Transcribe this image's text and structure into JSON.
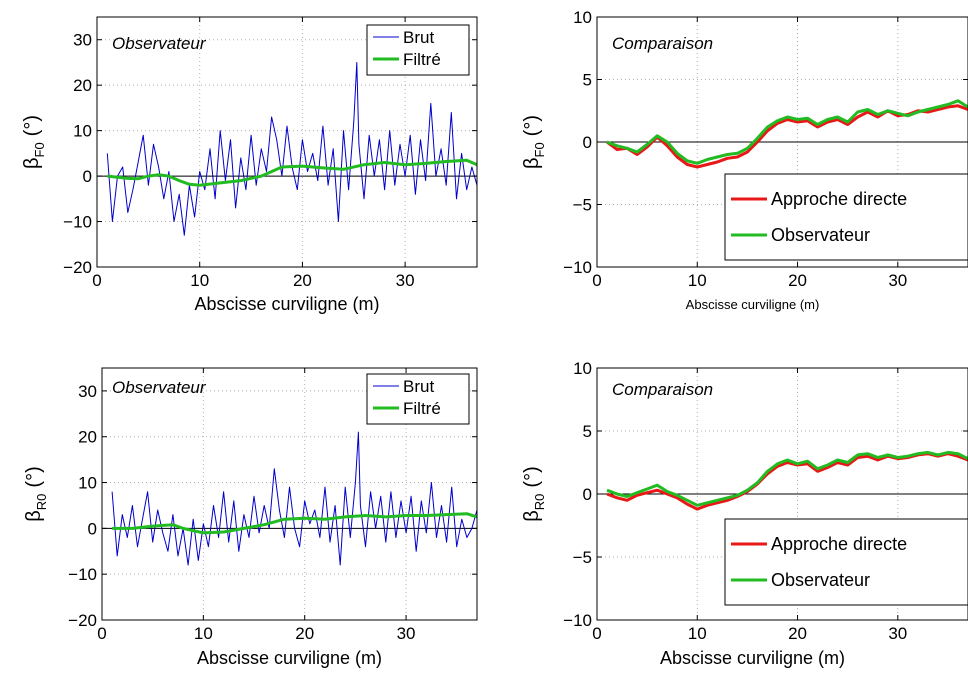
{
  "chart_data": [
    {
      "id": "top-left",
      "type": "line",
      "annotation": "Observateur",
      "xlabel": "Abscisse curviligne (m)",
      "ylabel": "β",
      "ylabel_sub": "F0",
      "ylabel_unit": "(°)",
      "xlim": [
        0,
        37
      ],
      "ylim": [
        -20,
        35
      ],
      "xticks": [
        0,
        10,
        20,
        30
      ],
      "yticks": [
        -20,
        -10,
        0,
        10,
        20,
        30
      ],
      "grid": true,
      "legend": "top-right",
      "series": [
        {
          "name": "Brut",
          "color": "#0000cc",
          "x": [
            1,
            1.5,
            2,
            2.5,
            3,
            3.5,
            4,
            4.5,
            5,
            5.5,
            6,
            6.5,
            7,
            7.5,
            8,
            8.5,
            9,
            9.5,
            10,
            10.5,
            11,
            11.5,
            12,
            12.5,
            13,
            13.5,
            14,
            14.5,
            15,
            15.5,
            16,
            16.5,
            17,
            17.5,
            18,
            18.5,
            19,
            19.5,
            20,
            20.5,
            21,
            21.5,
            22,
            22.5,
            23,
            23.5,
            24,
            24.5,
            25,
            25.3,
            25.5,
            26,
            26.5,
            27,
            27.5,
            28,
            28.5,
            29,
            29.5,
            30,
            30.5,
            31,
            31.5,
            32,
            32.5,
            33,
            33.5,
            34,
            34.5,
            35,
            35.5,
            36,
            36.5,
            37
          ],
          "y": [
            5,
            -10,
            0,
            2,
            -8,
            -3,
            3,
            9,
            -2,
            7,
            2,
            -5,
            1,
            -10,
            -4,
            -13,
            -2,
            -9,
            1,
            -3,
            6,
            -5,
            10,
            -1,
            8,
            -7,
            4,
            -3,
            9,
            -2,
            6,
            1,
            13,
            8,
            0,
            11,
            2,
            -3,
            8,
            1,
            5,
            -1,
            11,
            -2,
            6,
            -10,
            10,
            -3,
            12,
            25,
            7,
            -5,
            9,
            0,
            8,
            -3,
            10,
            -2,
            7,
            0,
            9,
            -4,
            8,
            -1,
            16,
            0,
            6,
            -2,
            14,
            -5,
            5,
            -3,
            2,
            -2
          ]
        },
        {
          "name": "Filtré",
          "color": "#22bb22",
          "x": [
            1,
            3,
            4,
            5,
            6,
            7,
            8,
            9,
            10,
            12,
            14,
            16,
            18,
            20,
            22,
            24,
            26,
            28,
            30,
            32,
            34,
            36,
            37
          ],
          "y": [
            0,
            -0.5,
            -0.6,
            0,
            0.3,
            0,
            -1,
            -1.8,
            -2,
            -1.5,
            -1,
            0,
            2,
            2.2,
            1.8,
            1.5,
            2.5,
            3,
            2.5,
            2.8,
            3.2,
            3.5,
            2.5
          ]
        }
      ]
    },
    {
      "id": "top-right",
      "type": "line",
      "annotation": "Comparaison",
      "xlabel": "Abscisse curviligne (m)",
      "ylabel": "β",
      "ylabel_sub": "F0",
      "ylabel_unit": "(°)",
      "xlim": [
        0,
        37
      ],
      "ylim": [
        -10,
        10
      ],
      "xticks": [
        0,
        10,
        20,
        30
      ],
      "yticks": [
        -10,
        -5,
        0,
        5,
        10
      ],
      "grid": true,
      "legend": "bottom-right",
      "series": [
        {
          "name": "Approche directe",
          "color": "#e81818",
          "x": [
            1,
            2,
            3,
            4,
            5,
            6,
            7,
            8,
            9,
            10,
            11,
            12,
            13,
            14,
            15,
            16,
            17,
            18,
            19,
            20,
            21,
            22,
            23,
            24,
            25,
            26,
            27,
            28,
            29,
            30,
            31,
            32,
            33,
            34,
            35,
            36,
            37
          ],
          "y": [
            0,
            -0.6,
            -0.5,
            -1,
            -0.4,
            0.4,
            -0.3,
            -1.2,
            -1.8,
            -2,
            -1.8,
            -1.6,
            -1.3,
            -1.2,
            -0.8,
            0,
            0.9,
            1.5,
            1.8,
            1.6,
            1.7,
            1.2,
            1.6,
            1.8,
            1.4,
            2.0,
            2.4,
            2.0,
            2.5,
            2.1,
            2.2,
            2.5,
            2.4,
            2.6,
            2.8,
            2.9,
            2.6
          ]
        },
        {
          "name": "Observateur",
          "color": "#22bb22",
          "x": [
            1,
            2,
            3,
            4,
            5,
            6,
            7,
            8,
            9,
            10,
            11,
            12,
            13,
            14,
            15,
            16,
            17,
            18,
            19,
            20,
            21,
            22,
            23,
            24,
            25,
            26,
            27,
            28,
            29,
            30,
            31,
            32,
            33,
            34,
            35,
            36,
            37
          ],
          "y": [
            0,
            -0.3,
            -0.5,
            -0.8,
            -0.2,
            0.5,
            0,
            -0.9,
            -1.5,
            -1.7,
            -1.4,
            -1.2,
            -1.0,
            -0.9,
            -0.5,
            0.3,
            1.2,
            1.7,
            2.0,
            1.8,
            1.9,
            1.4,
            1.8,
            2.0,
            1.6,
            2.4,
            2.6,
            2.2,
            2.5,
            2.3,
            2.1,
            2.4,
            2.6,
            2.8,
            3.0,
            3.3,
            2.8
          ]
        }
      ]
    },
    {
      "id": "bottom-left",
      "type": "line",
      "annotation": "Observateur",
      "xlabel": "Abscisse curviligne (m)",
      "ylabel": "β",
      "ylabel_sub": "R0",
      "ylabel_unit": "(°)",
      "xlim": [
        0,
        37
      ],
      "ylim": [
        -20,
        35
      ],
      "xticks": [
        0,
        10,
        20,
        30
      ],
      "yticks": [
        -20,
        -10,
        0,
        10,
        20,
        30
      ],
      "grid": true,
      "legend": "top-right",
      "series": [
        {
          "name": "Brut",
          "color": "#0000cc",
          "x": [
            1,
            1.5,
            2,
            2.5,
            3,
            3.5,
            4,
            4.5,
            5,
            5.5,
            6,
            6.5,
            7,
            7.5,
            8,
            8.5,
            9,
            9.5,
            10,
            10.5,
            11,
            11.5,
            12,
            12.5,
            13,
            13.5,
            14,
            14.5,
            15,
            15.5,
            16,
            16.5,
            17,
            17.5,
            18,
            18.5,
            19,
            19.5,
            20,
            20.5,
            21,
            21.5,
            22,
            22.5,
            23,
            23.5,
            24,
            24.5,
            25,
            25.3,
            25.5,
            26,
            26.5,
            27,
            27.5,
            28,
            28.5,
            29,
            29.5,
            30,
            30.5,
            31,
            31.5,
            32,
            32.5,
            33,
            33.5,
            34,
            34.5,
            35,
            35.5,
            36,
            36.5,
            37
          ],
          "y": [
            8,
            -6,
            3,
            -2,
            5,
            -4,
            2,
            8,
            -3,
            4,
            -1,
            -5,
            3,
            -6,
            0,
            -8,
            2,
            -7,
            1,
            -4,
            5,
            -2,
            8,
            -3,
            6,
            -5,
            3,
            -2,
            7,
            -1,
            5,
            0,
            13,
            4,
            -2,
            9,
            0,
            -4,
            6,
            1,
            4,
            -2,
            9,
            -3,
            5,
            -8,
            9,
            -2,
            10,
            21,
            5,
            -4,
            8,
            0,
            7,
            -3,
            8,
            -2,
            6,
            -1,
            7,
            -5,
            6,
            -1,
            10,
            -2,
            5,
            -3,
            9,
            -4,
            2,
            -2,
            0,
            4
          ]
        },
        {
          "name": "Filtré",
          "color": "#22bb22",
          "x": [
            1,
            3,
            5,
            7,
            8,
            9,
            10,
            12,
            14,
            16,
            18,
            20,
            22,
            24,
            26,
            28,
            30,
            32,
            34,
            36,
            37
          ],
          "y": [
            0,
            0,
            0.5,
            0.8,
            0,
            -0.5,
            -1,
            -0.8,
            0,
            0.8,
            2,
            2.2,
            2,
            2.5,
            2.8,
            2.5,
            2.8,
            2.8,
            3.0,
            3.2,
            2.5
          ]
        }
      ]
    },
    {
      "id": "bottom-right",
      "type": "line",
      "annotation": "Comparaison",
      "xlabel": "Abscisse curviligne (m)",
      "ylabel": "β",
      "ylabel_sub": "R0",
      "ylabel_unit": "(°)",
      "xlim": [
        0,
        37
      ],
      "ylim": [
        -10,
        10
      ],
      "xticks": [
        0,
        10,
        20,
        30
      ],
      "yticks": [
        -10,
        -5,
        0,
        5,
        10
      ],
      "grid": true,
      "legend": "bottom-right",
      "series": [
        {
          "name": "Approche directe",
          "color": "#e81818",
          "x": [
            1,
            2,
            3,
            4,
            5,
            6,
            7,
            8,
            9,
            10,
            11,
            12,
            13,
            14,
            15,
            16,
            17,
            18,
            19,
            20,
            21,
            22,
            23,
            24,
            25,
            26,
            27,
            28,
            29,
            30,
            31,
            32,
            33,
            34,
            35,
            36,
            37
          ],
          "y": [
            0,
            -0.3,
            -0.5,
            -0.1,
            0.1,
            0.3,
            0,
            -0.3,
            -0.8,
            -1.2,
            -0.9,
            -0.7,
            -0.5,
            -0.2,
            0.2,
            0.8,
            1.6,
            2.2,
            2.5,
            2.3,
            2.4,
            1.8,
            2.1,
            2.5,
            2.3,
            2.9,
            3.0,
            2.7,
            3.0,
            2.8,
            2.9,
            3.1,
            3.2,
            3.0,
            3.2,
            3.0,
            2.7
          ]
        },
        {
          "name": "Observateur",
          "color": "#22bb22",
          "x": [
            1,
            2,
            3,
            4,
            5,
            6,
            7,
            8,
            9,
            10,
            11,
            12,
            13,
            14,
            15,
            16,
            17,
            18,
            19,
            20,
            21,
            22,
            23,
            24,
            25,
            26,
            27,
            28,
            29,
            30,
            31,
            32,
            33,
            34,
            35,
            36,
            37
          ],
          "y": [
            0.3,
            0,
            -0.2,
            0.1,
            0.4,
            0.7,
            0.2,
            -0.1,
            -0.5,
            -0.9,
            -0.7,
            -0.5,
            -0.3,
            -0.1,
            0.3,
            0.9,
            1.8,
            2.4,
            2.7,
            2.4,
            2.6,
            2.0,
            2.3,
            2.7,
            2.5,
            3.1,
            3.2,
            2.9,
            3.1,
            2.9,
            3.0,
            3.2,
            3.3,
            3.1,
            3.3,
            3.2,
            2.8
          ]
        }
      ]
    }
  ]
}
